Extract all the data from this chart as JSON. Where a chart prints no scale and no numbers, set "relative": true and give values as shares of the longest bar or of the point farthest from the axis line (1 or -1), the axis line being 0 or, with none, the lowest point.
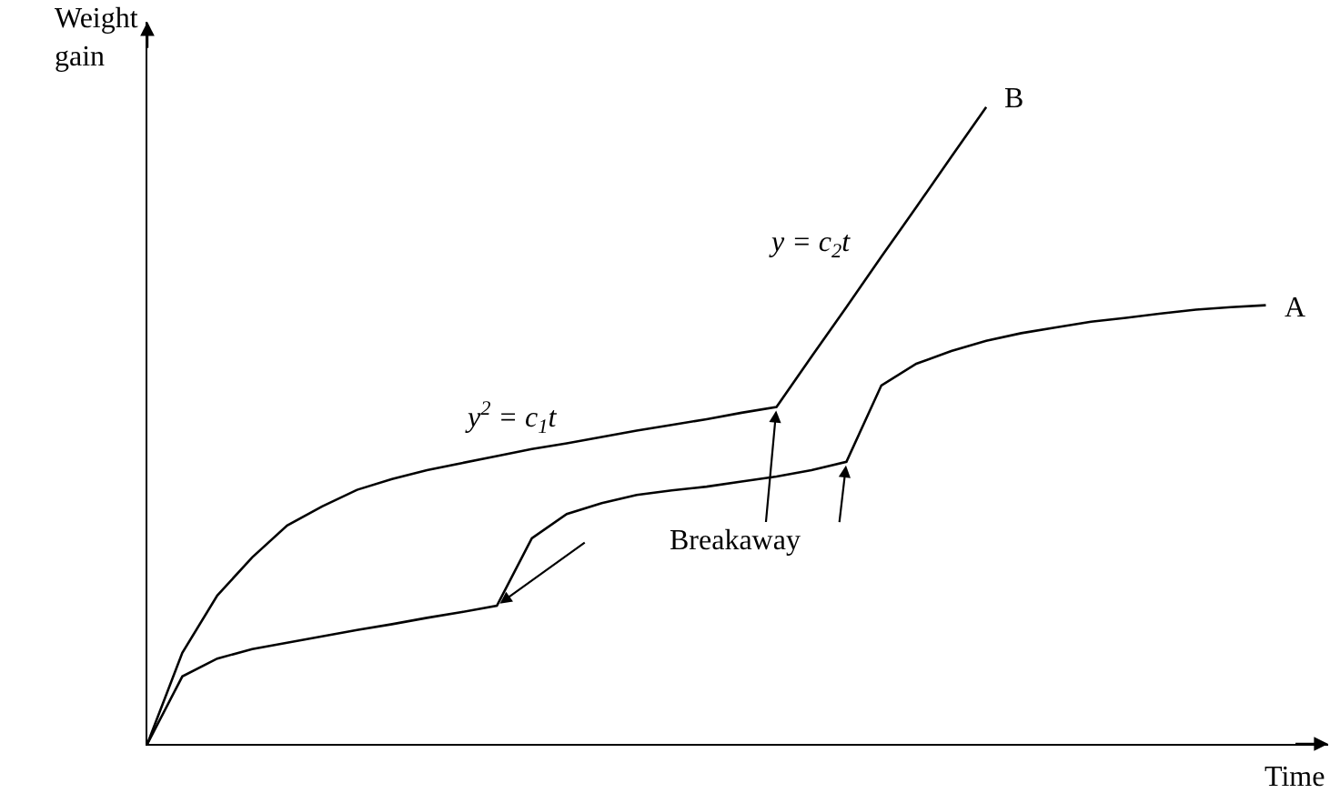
{
  "chart_data": {
    "type": "line",
    "relative": true,
    "xlabel": "Time",
    "ylabel": "Weight gain",
    "legend": false,
    "marker": "none",
    "line_style": "solid",
    "categories": [
      null,
      null,
      null,
      null,
      null,
      null,
      null,
      null,
      null,
      null,
      null,
      null,
      null,
      null,
      null,
      null,
      null,
      null,
      null,
      null,
      null,
      null,
      null,
      null,
      null,
      null,
      null,
      null,
      null,
      null,
      null,
      null,
      null
    ],
    "series": [
      {
        "name": "B",
        "color": "#000000",
        "values": [
          0,
          0.143,
          0.233,
          0.293,
          0.343,
          0.373,
          0.399,
          0.416,
          0.43,
          0.441,
          0.452,
          0.463,
          0.472,
          0.482,
          0.492,
          0.501,
          0.51,
          0.52,
          0.529,
          0.608,
          0.686,
          0.765,
          0.843,
          0.922,
          1.0,
          null,
          null,
          null,
          null,
          null,
          null,
          null,
          null
        ]
      },
      {
        "name": "A",
        "color": "#000000",
        "values": [
          0,
          0.106,
          0.134,
          0.149,
          0.159,
          0.169,
          0.179,
          0.188,
          0.198,
          0.207,
          0.217,
          0.323,
          0.361,
          0.378,
          0.391,
          0.398,
          0.404,
          0.412,
          0.42,
          0.43,
          0.443,
          0.563,
          0.597,
          0.617,
          0.633,
          0.645,
          0.654,
          0.663,
          0.669,
          0.676,
          0.682,
          0.686,
          0.689
        ]
      }
    ],
    "annotations": [
      "y$^{2}$ = c$_{1}$t",
      "y = c$_{2}$t",
      "Breakaway"
    ]
  }
}
